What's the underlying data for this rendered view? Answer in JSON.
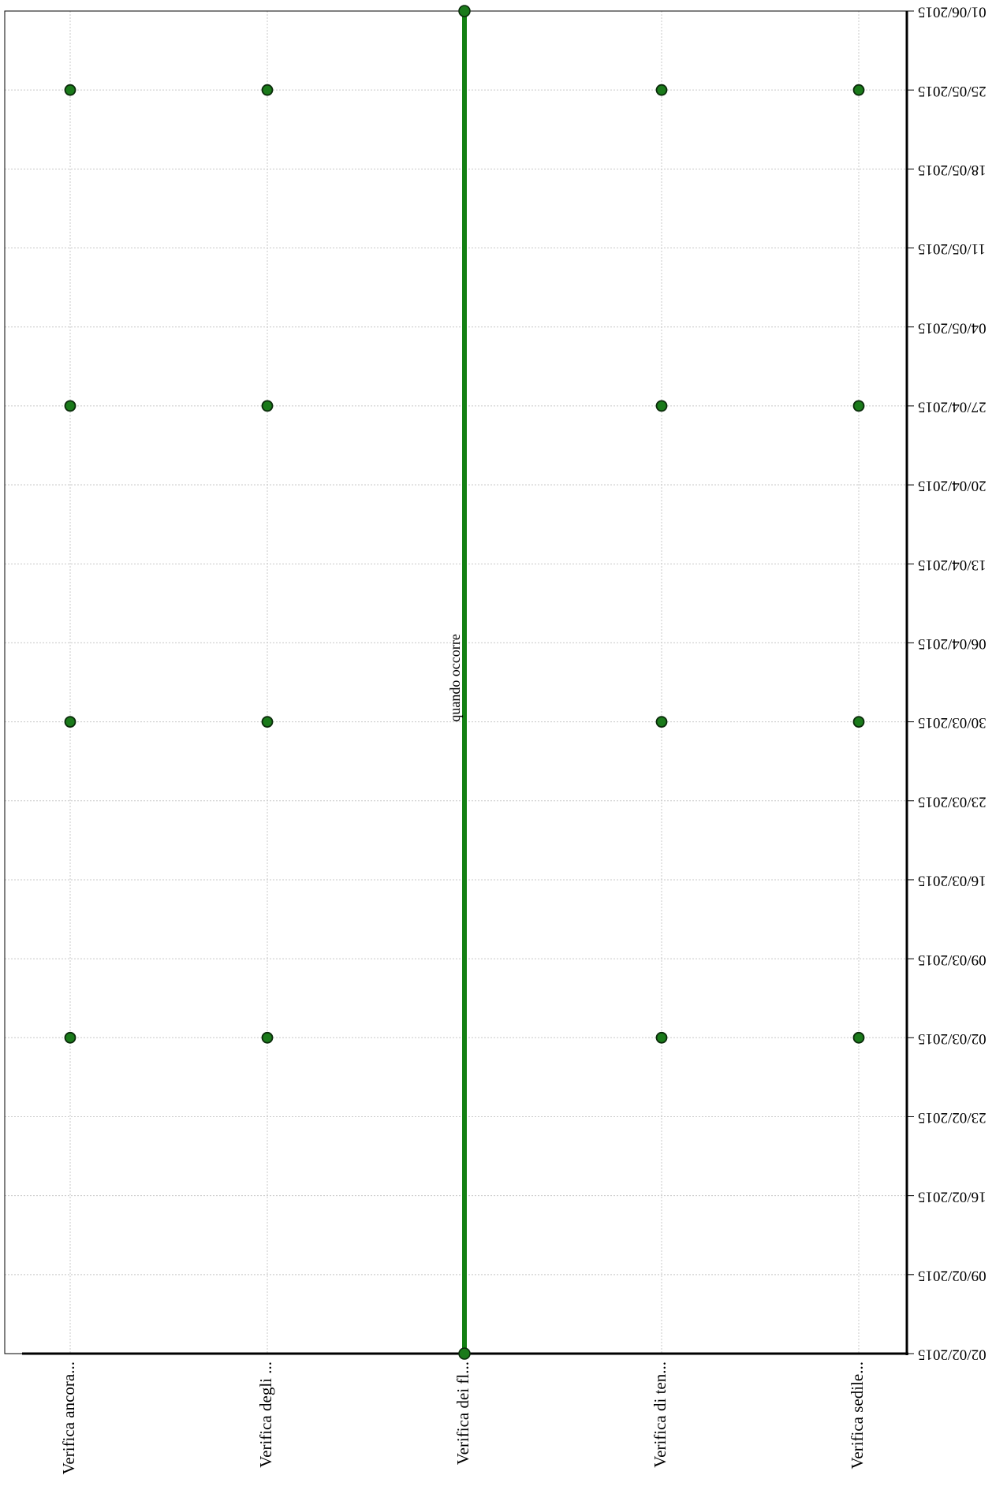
{
  "chart_data": {
    "type": "scatter",
    "orientation": "horizontal-time",
    "rotation": "rotated 90 degrees",
    "categories": [
      "Verifica ancora...",
      "Verifica degli ...",
      "Verifica dei fl...",
      "Verifica di ten...",
      "Verifica sedile..."
    ],
    "time_ticks": [
      "02/02/2015",
      "09/02/2015",
      "16/02/2015",
      "23/02/2015",
      "02/03/2015",
      "09/03/2015",
      "16/03/2015",
      "23/03/2015",
      "30/03/2015",
      "06/04/2015",
      "13/04/2015",
      "20/04/2015",
      "27/04/2015",
      "04/05/2015",
      "11/05/2015",
      "18/05/2015",
      "25/05/2015",
      "01/06/2015"
    ],
    "time_range": [
      "02/02/2015",
      "01/06/2015"
    ],
    "series": [
      {
        "category": "Verifica ancora...",
        "points": [
          "02/03/2015",
          "30/03/2015",
          "27/04/2015",
          "25/05/2015"
        ]
      },
      {
        "category": "Verifica degli ...",
        "points": [
          "02/03/2015",
          "30/03/2015",
          "27/04/2015",
          "25/05/2015"
        ]
      },
      {
        "category": "Verifica dei fl...",
        "span": [
          "02/02/2015",
          "01/06/2015"
        ],
        "label": "quando occorre"
      },
      {
        "category": "Verifica di ten...",
        "points": [
          "02/03/2015",
          "30/03/2015",
          "27/04/2015",
          "25/05/2015"
        ]
      },
      {
        "category": "Verifica sedile...",
        "points": [
          "02/03/2015",
          "30/03/2015",
          "27/04/2015",
          "25/05/2015"
        ]
      }
    ],
    "grid": true,
    "colors": {
      "marker_fill": "#1a7a1a",
      "marker_stroke": "#0a2a0a",
      "span_line": "#138013",
      "grid": "#c8c8c8"
    }
  }
}
